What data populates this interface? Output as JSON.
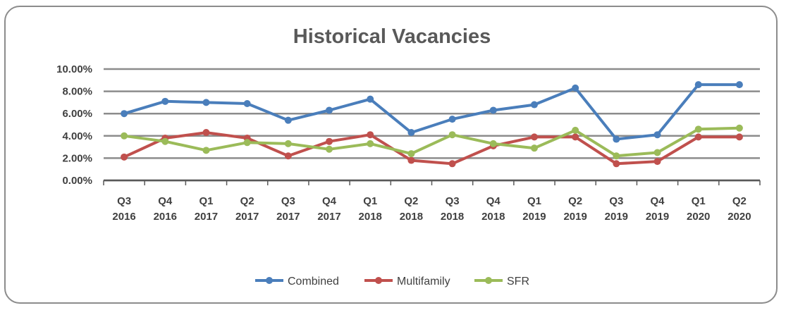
{
  "chart_data": {
    "type": "line",
    "title": "Historical Vacancies",
    "categories": [
      [
        "Q3",
        "2016"
      ],
      [
        "Q4",
        "2016"
      ],
      [
        "Q1",
        "2017"
      ],
      [
        "Q2",
        "2017"
      ],
      [
        "Q3",
        "2017"
      ],
      [
        "Q4",
        "2017"
      ],
      [
        "Q1",
        "2018"
      ],
      [
        "Q2",
        "2018"
      ],
      [
        "Q3",
        "2018"
      ],
      [
        "Q4",
        "2018"
      ],
      [
        "Q1",
        "2019"
      ],
      [
        "Q2",
        "2019"
      ],
      [
        "Q3",
        "2019"
      ],
      [
        "Q4",
        "2019"
      ],
      [
        "Q1",
        "2020"
      ],
      [
        "Q2",
        "2020"
      ]
    ],
    "y_ticks": [
      "0.00%",
      "2.00%",
      "4.00%",
      "6.00%",
      "8.00%",
      "10.00%"
    ],
    "ylim": [
      0,
      10
    ],
    "grid": true,
    "legend_position": "bottom",
    "series": [
      {
        "name": "Combined",
        "color": "#4a7ebb",
        "values": [
          6.0,
          7.1,
          7.0,
          6.9,
          5.4,
          6.3,
          7.3,
          4.3,
          5.5,
          6.3,
          6.8,
          8.3,
          3.7,
          4.1,
          8.6,
          8.6
        ]
      },
      {
        "name": "Multifamily",
        "color": "#c0504d",
        "values": [
          2.1,
          3.8,
          4.3,
          3.8,
          2.2,
          3.5,
          4.1,
          1.8,
          1.5,
          3.1,
          3.9,
          3.9,
          1.5,
          1.7,
          3.9,
          3.9
        ]
      },
      {
        "name": "SFR",
        "color": "#9bbb59",
        "values": [
          4.0,
          3.5,
          2.7,
          3.4,
          3.3,
          2.8,
          3.3,
          2.4,
          4.1,
          3.3,
          2.9,
          4.5,
          2.2,
          2.5,
          4.6,
          4.7
        ]
      }
    ]
  }
}
